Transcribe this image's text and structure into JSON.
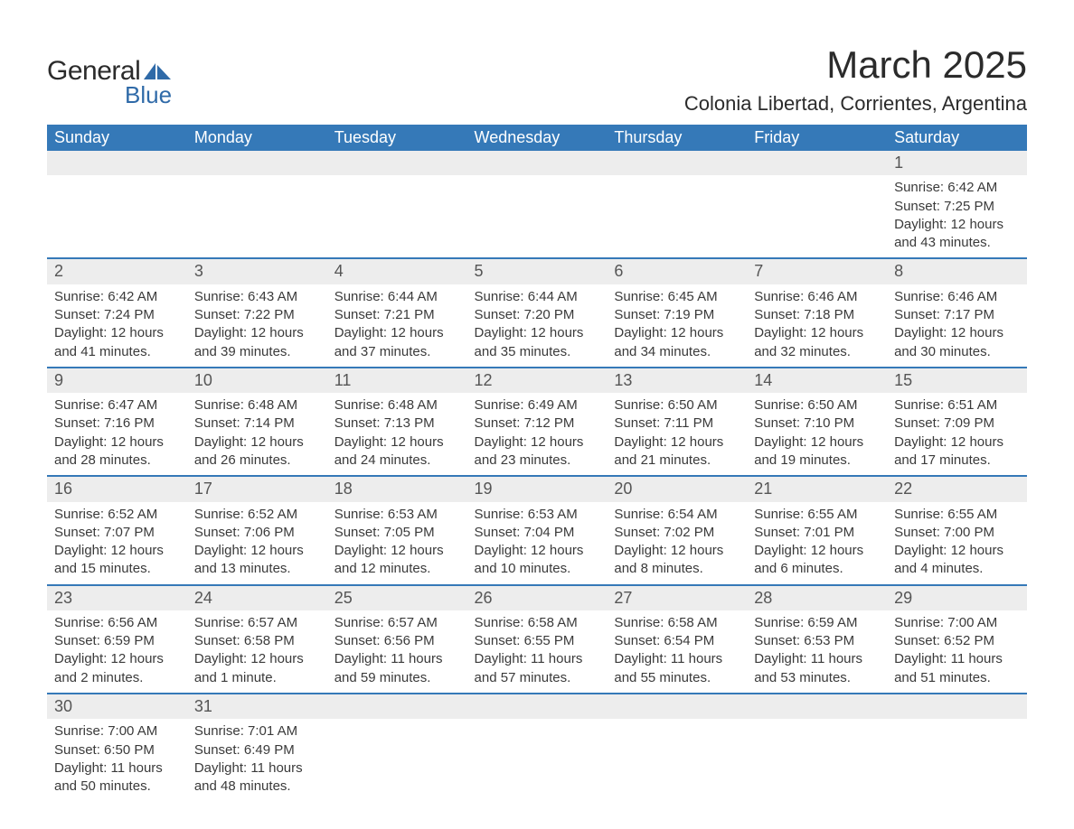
{
  "logo": {
    "text_general": "General",
    "text_blue": "Blue",
    "shape_color": "#2f6aa8"
  },
  "title": "March 2025",
  "location": "Colonia Libertad, Corrientes, Argentina",
  "colors": {
    "header_bg": "#3579b8",
    "header_text": "#ffffff",
    "daynum_bg": "#ededed",
    "row_divider": "#3579b8",
    "body_text": "#3a3a3a"
  },
  "day_headers": [
    "Sunday",
    "Monday",
    "Tuesday",
    "Wednesday",
    "Thursday",
    "Friday",
    "Saturday"
  ],
  "leading_blanks": 6,
  "days": [
    {
      "n": 1,
      "sunrise": "6:42 AM",
      "sunset": "7:25 PM",
      "daylight": "12 hours and 43 minutes."
    },
    {
      "n": 2,
      "sunrise": "6:42 AM",
      "sunset": "7:24 PM",
      "daylight": "12 hours and 41 minutes."
    },
    {
      "n": 3,
      "sunrise": "6:43 AM",
      "sunset": "7:22 PM",
      "daylight": "12 hours and 39 minutes."
    },
    {
      "n": 4,
      "sunrise": "6:44 AM",
      "sunset": "7:21 PM",
      "daylight": "12 hours and 37 minutes."
    },
    {
      "n": 5,
      "sunrise": "6:44 AM",
      "sunset": "7:20 PM",
      "daylight": "12 hours and 35 minutes."
    },
    {
      "n": 6,
      "sunrise": "6:45 AM",
      "sunset": "7:19 PM",
      "daylight": "12 hours and 34 minutes."
    },
    {
      "n": 7,
      "sunrise": "6:46 AM",
      "sunset": "7:18 PM",
      "daylight": "12 hours and 32 minutes."
    },
    {
      "n": 8,
      "sunrise": "6:46 AM",
      "sunset": "7:17 PM",
      "daylight": "12 hours and 30 minutes."
    },
    {
      "n": 9,
      "sunrise": "6:47 AM",
      "sunset": "7:16 PM",
      "daylight": "12 hours and 28 minutes."
    },
    {
      "n": 10,
      "sunrise": "6:48 AM",
      "sunset": "7:14 PM",
      "daylight": "12 hours and 26 minutes."
    },
    {
      "n": 11,
      "sunrise": "6:48 AM",
      "sunset": "7:13 PM",
      "daylight": "12 hours and 24 minutes."
    },
    {
      "n": 12,
      "sunrise": "6:49 AM",
      "sunset": "7:12 PM",
      "daylight": "12 hours and 23 minutes."
    },
    {
      "n": 13,
      "sunrise": "6:50 AM",
      "sunset": "7:11 PM",
      "daylight": "12 hours and 21 minutes."
    },
    {
      "n": 14,
      "sunrise": "6:50 AM",
      "sunset": "7:10 PM",
      "daylight": "12 hours and 19 minutes."
    },
    {
      "n": 15,
      "sunrise": "6:51 AM",
      "sunset": "7:09 PM",
      "daylight": "12 hours and 17 minutes."
    },
    {
      "n": 16,
      "sunrise": "6:52 AM",
      "sunset": "7:07 PM",
      "daylight": "12 hours and 15 minutes."
    },
    {
      "n": 17,
      "sunrise": "6:52 AM",
      "sunset": "7:06 PM",
      "daylight": "12 hours and 13 minutes."
    },
    {
      "n": 18,
      "sunrise": "6:53 AM",
      "sunset": "7:05 PM",
      "daylight": "12 hours and 12 minutes."
    },
    {
      "n": 19,
      "sunrise": "6:53 AM",
      "sunset": "7:04 PM",
      "daylight": "12 hours and 10 minutes."
    },
    {
      "n": 20,
      "sunrise": "6:54 AM",
      "sunset": "7:02 PM",
      "daylight": "12 hours and 8 minutes."
    },
    {
      "n": 21,
      "sunrise": "6:55 AM",
      "sunset": "7:01 PM",
      "daylight": "12 hours and 6 minutes."
    },
    {
      "n": 22,
      "sunrise": "6:55 AM",
      "sunset": "7:00 PM",
      "daylight": "12 hours and 4 minutes."
    },
    {
      "n": 23,
      "sunrise": "6:56 AM",
      "sunset": "6:59 PM",
      "daylight": "12 hours and 2 minutes."
    },
    {
      "n": 24,
      "sunrise": "6:57 AM",
      "sunset": "6:58 PM",
      "daylight": "12 hours and 1 minute."
    },
    {
      "n": 25,
      "sunrise": "6:57 AM",
      "sunset": "6:56 PM",
      "daylight": "11 hours and 59 minutes."
    },
    {
      "n": 26,
      "sunrise": "6:58 AM",
      "sunset": "6:55 PM",
      "daylight": "11 hours and 57 minutes."
    },
    {
      "n": 27,
      "sunrise": "6:58 AM",
      "sunset": "6:54 PM",
      "daylight": "11 hours and 55 minutes."
    },
    {
      "n": 28,
      "sunrise": "6:59 AM",
      "sunset": "6:53 PM",
      "daylight": "11 hours and 53 minutes."
    },
    {
      "n": 29,
      "sunrise": "7:00 AM",
      "sunset": "6:52 PM",
      "daylight": "11 hours and 51 minutes."
    },
    {
      "n": 30,
      "sunrise": "7:00 AM",
      "sunset": "6:50 PM",
      "daylight": "11 hours and 50 minutes."
    },
    {
      "n": 31,
      "sunrise": "7:01 AM",
      "sunset": "6:49 PM",
      "daylight": "11 hours and 48 minutes."
    }
  ],
  "labels": {
    "sunrise": "Sunrise:",
    "sunset": "Sunset:",
    "daylight": "Daylight:"
  }
}
